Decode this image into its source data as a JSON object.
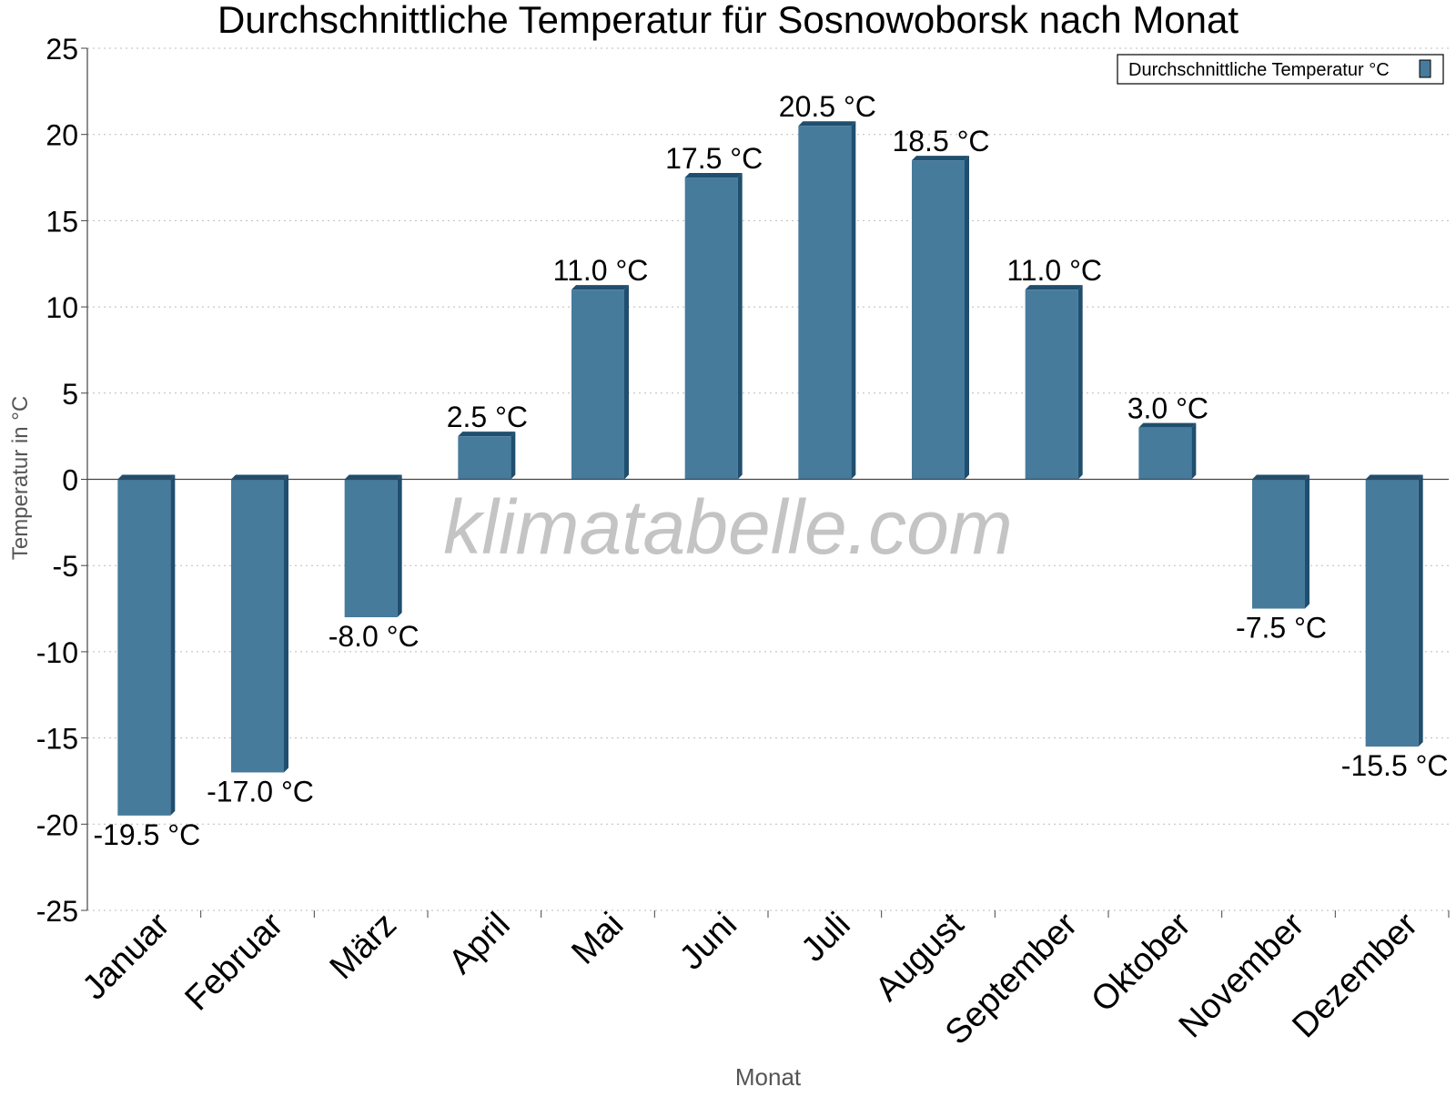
{
  "chart_data": {
    "type": "bar",
    "title": "Durchschnittliche Temperatur für Sosnowoborsk nach Monat",
    "xlabel": "Monat",
    "ylabel": "Temperatur in °C",
    "categories": [
      "Januar",
      "Februar",
      "März",
      "April",
      "Mai",
      "Juni",
      "Juli",
      "August",
      "September",
      "Oktober",
      "November",
      "Dezember"
    ],
    "series": [
      {
        "name": "Durchschnittliche Temperatur °C",
        "values": [
          -19.5,
          -17.0,
          -8.0,
          2.5,
          11.0,
          17.5,
          20.5,
          18.5,
          11.0,
          3.0,
          -7.5,
          -15.5
        ]
      }
    ],
    "data_labels": [
      "-19.5 °C",
      "-17.0 °C",
      "-8.0 °C",
      "2.5 °C",
      "11.0 °C",
      "17.5 °C",
      "20.5 °C",
      "18.5 °C",
      "11.0 °C",
      "3.0 °C",
      "-7.5 °C",
      "-15.5 °C"
    ],
    "ylim": [
      -25,
      25
    ],
    "yticks": [
      25,
      20,
      15,
      10,
      5,
      0,
      -5,
      -10,
      -15,
      -20,
      -25
    ],
    "grid": true,
    "legend_position": "top-right",
    "watermark": "klimatabelle.com",
    "colors": {
      "bar_face": "#467b9c",
      "bar_side": "#1f4e6e",
      "grid": "#bbbbbb",
      "axis": "#444444",
      "watermark": "#c4c4c4"
    }
  }
}
